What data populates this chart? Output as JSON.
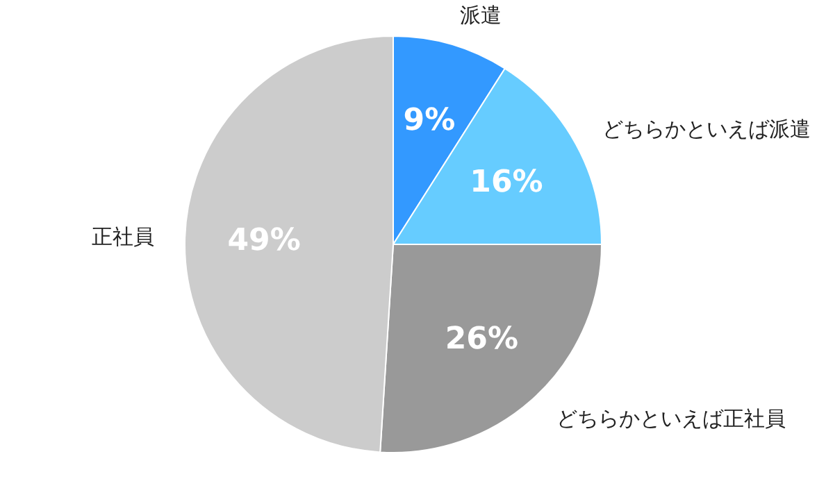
{
  "chart_data": {
    "type": "pie",
    "categories": [
      "派遣",
      "どちらかといえば派遣",
      "どちらかといえば正社員",
      "正社員"
    ],
    "values": [
      9,
      16,
      26,
      49
    ],
    "colors": [
      "#3399ff",
      "#66ccff",
      "#999999",
      "#cccccc"
    ],
    "value_labels": [
      "9%",
      "16%",
      "26%",
      "49%"
    ]
  }
}
